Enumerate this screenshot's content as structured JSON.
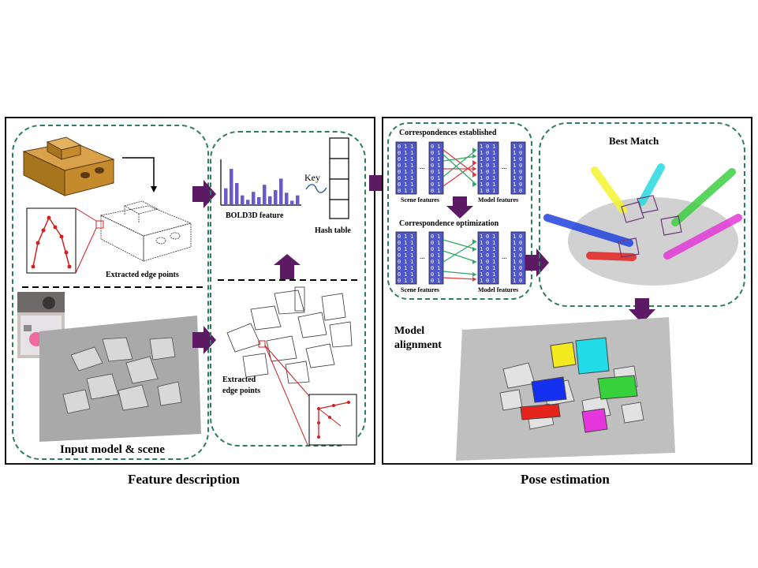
{
  "feature_panel": {
    "caption": "Feature description",
    "extracted_edge_points": "Extracted edge points",
    "input_model_scene": "Input model & scene",
    "bold3d_feature": "BOLD3D feature",
    "key": "Key",
    "hash_table": "Hash table",
    "extracted_edge_points_scene_1": "Extracted",
    "extracted_edge_points_scene_2": "edge points"
  },
  "pose_panel": {
    "caption": "Pose estimation",
    "correspondences_established": "Correspondences established",
    "correspondence_optimization": "Correspondence optimization",
    "scene_features": "Scene features",
    "model_features": "Model features",
    "best_match": "Best Match",
    "model_alignment_1": "Model",
    "model_alignment_2": "alignment"
  },
  "colors": {
    "arrow": "#5b1a63",
    "dashed_border": "#2e7d5b",
    "histogram": "#6b5bc8",
    "matrix": "#5057c8",
    "correspondence_red": "#e0393e",
    "correspondence_green": "#2fa866"
  }
}
